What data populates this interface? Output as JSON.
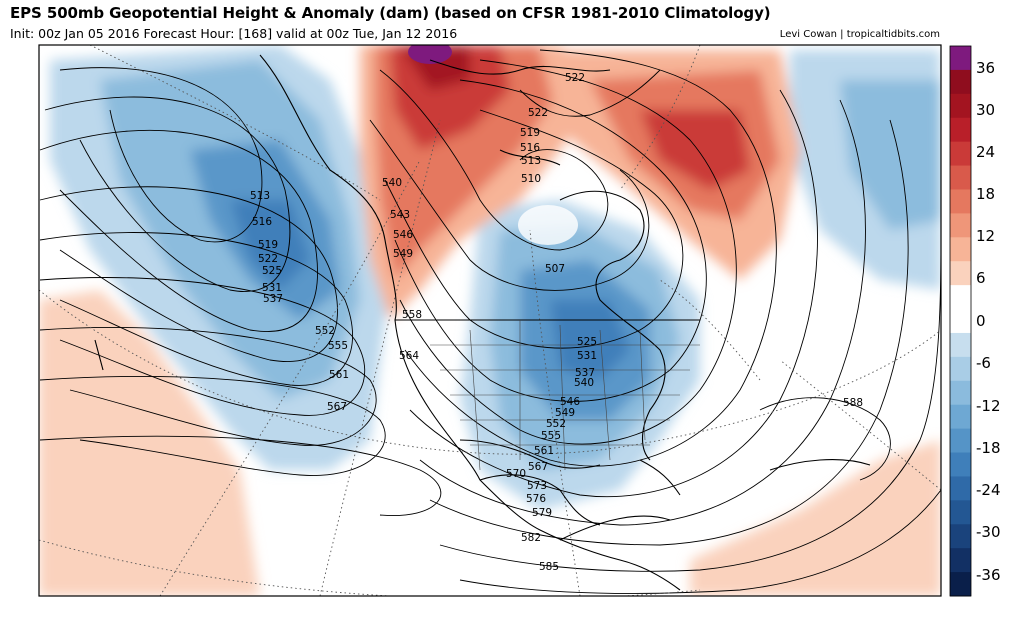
{
  "header": {
    "title": "EPS 500mb Geopotential Height & Anomaly (dam) (based on CFSR 1981-2010 Climatology)",
    "subtitle": "Init: 00z Jan 05 2016   Forecast Hour: [168]   valid at 00z Tue, Jan 12 2016",
    "credit": "Levi Cowan | tropicaltidbits.com"
  },
  "colorbar": {
    "ticks": [
      "36",
      "30",
      "24",
      "18",
      "12",
      "6",
      "0",
      "-6",
      "-12",
      "-18",
      "-24",
      "-30",
      "-36"
    ],
    "colors": [
      "#7e1a7e",
      "#8f0d1e",
      "#a31420",
      "#b91f29",
      "#ca3a38",
      "#d95a4b",
      "#e5785f",
      "#ef9679",
      "#f7b497",
      "#fad2bd",
      "#ffffff",
      "#ffffff",
      "#c7deee",
      "#a9cde6",
      "#8bbbdd",
      "#6ea8d3",
      "#5594c7",
      "#3f7fba",
      "#2f6aa8",
      "#235793",
      "#1a437c",
      "#123064",
      "#0a1f4a"
    ]
  },
  "map": {
    "height_labels": [
      "513",
      "516",
      "519",
      "522",
      "525",
      "531",
      "537",
      "552",
      "555",
      "561",
      "567",
      "540",
      "543",
      "546",
      "549",
      "558",
      "564",
      "522",
      "522",
      "519",
      "516",
      "513",
      "510",
      "507",
      "525",
      "531",
      "537",
      "540",
      "546",
      "549",
      "552",
      "555",
      "561",
      "567",
      "570",
      "573",
      "576",
      "579",
      "582",
      "585",
      "588"
    ]
  }
}
